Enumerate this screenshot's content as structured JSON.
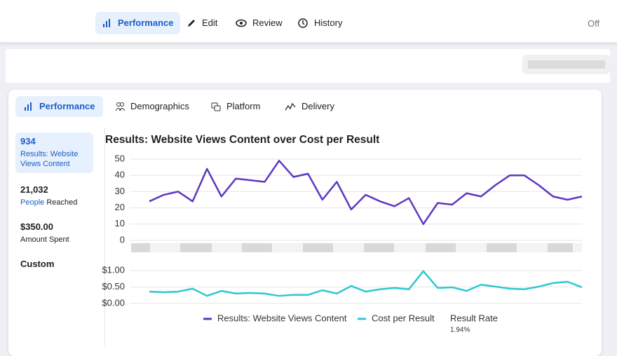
{
  "nav": {
    "items": [
      "Performance",
      "Edit",
      "Review",
      "History"
    ],
    "toggle": "Off"
  },
  "tabs": [
    "Performance",
    "Demographics",
    "Platform",
    "Delivery"
  ],
  "stats": [
    {
      "value": "934",
      "label": "Results: Website Views Content"
    },
    {
      "value": "21,032",
      "label_link": "People",
      "label": "Reached"
    },
    {
      "value": "$350.00",
      "label": "Amount Spent"
    },
    {
      "value": "Custom"
    }
  ],
  "chart_title": "Results: Website Views Content over Cost per Result",
  "chart_data": [
    {
      "type": "line",
      "ylim": [
        0,
        50
      ],
      "yticks": [
        0,
        10,
        20,
        30,
        40,
        50
      ],
      "grid": true,
      "series": [
        {
          "name": "Results: Website Views Content",
          "color": "#5e37c2",
          "values": [
            24,
            28,
            30,
            24,
            44,
            27,
            38,
            37,
            36,
            49,
            39,
            41,
            25,
            36,
            19,
            28,
            24,
            21,
            26,
            10,
            23,
            22,
            29,
            27,
            34,
            40,
            40,
            34,
            27,
            25,
            27
          ]
        }
      ]
    },
    {
      "type": "line",
      "ylim": [
        0,
        1
      ],
      "yticks": [
        {
          "value": 0,
          "label": "$0.00"
        },
        {
          "value": 0.5,
          "label": "$0.50"
        },
        {
          "value": 1,
          "label": "$1.00"
        }
      ],
      "grid": true,
      "series": [
        {
          "name": "Cost per Result",
          "color": "#2ec8d1",
          "values": [
            0.36,
            0.34,
            0.36,
            0.45,
            0.23,
            0.38,
            0.3,
            0.32,
            0.3,
            0.23,
            0.26,
            0.26,
            0.4,
            0.3,
            0.53,
            0.36,
            0.43,
            0.47,
            0.43,
            0.98,
            0.47,
            0.49,
            0.38,
            0.57,
            0.51,
            0.45,
            0.43,
            0.51,
            0.62,
            0.66,
            0.49
          ]
        }
      ],
      "extra_legend": {
        "label": "Result Rate",
        "value": "1.94%"
      }
    }
  ]
}
